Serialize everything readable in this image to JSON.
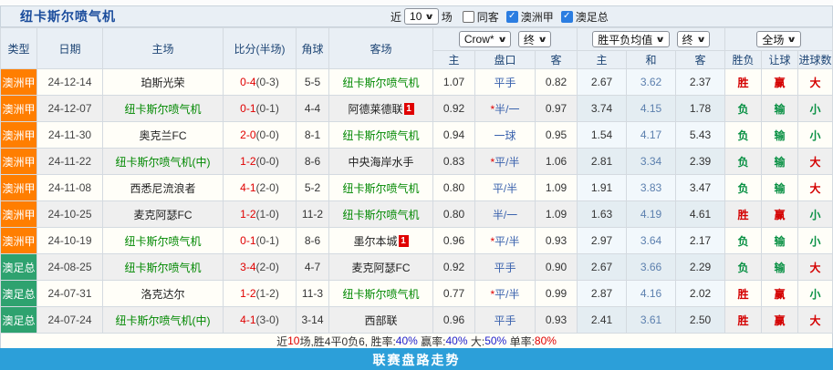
{
  "colors": {
    "title_navy": "#1A4C9C",
    "league_orange": "#FF7E00",
    "cup_green": "#2EA26F",
    "team_green": "#008800",
    "score_red": "#E00000",
    "pan_blue": "#3A62AD",
    "avg_blue": "#5B7FAE",
    "bar_blue": "#2C9FD9"
  },
  "icons": {
    "chevron_down": "∨",
    "check": "✓"
  },
  "header": {
    "team_title": "纽卡斯尔喷气机",
    "near_label": "近",
    "matches_count": "10",
    "matches_label": "场",
    "filters": [
      {
        "label": "同客",
        "checked": false
      },
      {
        "label": "澳洲甲",
        "checked": true
      },
      {
        "label": "澳足总",
        "checked": true
      }
    ]
  },
  "table": {
    "static_headers": [
      "类型",
      "日期",
      "主场",
      "比分(半场)",
      "角球",
      "客场"
    ],
    "selects": {
      "company": "Crow*",
      "company_time": "终",
      "avg": "胜平负均值",
      "avg_time": "终",
      "scope": "全场"
    },
    "sub_headers": [
      "主",
      "盘口",
      "客",
      "主",
      "和",
      "客",
      "胜负",
      "让球",
      "进球数"
    ],
    "rows": [
      {
        "type": "澳洲甲",
        "date": "24-12-14",
        "home": "珀斯光荣",
        "home_hl": false,
        "score_ft": "0-4",
        "score_ht": "(0-3)",
        "corner": "5-5",
        "away": "纽卡斯尔喷气机",
        "away_hl": true,
        "away_badge": "",
        "h": "1.07",
        "pan_star": "",
        "pan": "平手",
        "a": "0.82",
        "avg_h": "2.67",
        "avg_d": "3.62",
        "avg_a": "2.37",
        "r1": "胜",
        "r2": "赢",
        "r3": "大"
      },
      {
        "type": "澳洲甲",
        "date": "24-12-07",
        "home": "纽卡斯尔喷气机",
        "home_hl": true,
        "score_ft": "0-1",
        "score_ht": "(0-1)",
        "corner": "4-4",
        "away": "阿德莱德联",
        "away_hl": false,
        "away_badge": "1",
        "h": "0.92",
        "pan_star": "*",
        "pan": "半/一",
        "a": "0.97",
        "avg_h": "3.74",
        "avg_d": "4.15",
        "avg_a": "1.78",
        "r1": "负",
        "r2": "输",
        "r3": "小"
      },
      {
        "type": "澳洲甲",
        "date": "24-11-30",
        "home": "奥克兰FC",
        "home_hl": false,
        "score_ft": "2-0",
        "score_ht": "(0-0)",
        "corner": "8-1",
        "away": "纽卡斯尔喷气机",
        "away_hl": true,
        "away_badge": "",
        "h": "0.94",
        "pan_star": "",
        "pan": "一球",
        "a": "0.95",
        "avg_h": "1.54",
        "avg_d": "4.17",
        "avg_a": "5.43",
        "r1": "负",
        "r2": "输",
        "r3": "小"
      },
      {
        "type": "澳洲甲",
        "date": "24-11-22",
        "home": "纽卡斯尔喷气机(中)",
        "home_hl": true,
        "score_ft": "1-2",
        "score_ht": "(0-0)",
        "corner": "8-6",
        "away": "中央海岸水手",
        "away_hl": false,
        "away_badge": "",
        "h": "0.83",
        "pan_star": "*",
        "pan": "平/半",
        "a": "1.06",
        "avg_h": "2.81",
        "avg_d": "3.34",
        "avg_a": "2.39",
        "r1": "负",
        "r2": "输",
        "r3": "大"
      },
      {
        "type": "澳洲甲",
        "date": "24-11-08",
        "home": "西悉尼流浪者",
        "home_hl": false,
        "score_ft": "4-1",
        "score_ht": "(2-0)",
        "corner": "5-2",
        "away": "纽卡斯尔喷气机",
        "away_hl": true,
        "away_badge": "",
        "h": "0.80",
        "pan_star": "",
        "pan": "平/半",
        "a": "1.09",
        "avg_h": "1.91",
        "avg_d": "3.83",
        "avg_a": "3.47",
        "r1": "负",
        "r2": "输",
        "r3": "大"
      },
      {
        "type": "澳洲甲",
        "date": "24-10-25",
        "home": "麦克阿瑟FC",
        "home_hl": false,
        "score_ft": "1-2",
        "score_ht": "(1-0)",
        "corner": "11-2",
        "away": "纽卡斯尔喷气机",
        "away_hl": true,
        "away_badge": "",
        "h": "0.80",
        "pan_star": "",
        "pan": "半/一",
        "a": "1.09",
        "avg_h": "1.63",
        "avg_d": "4.19",
        "avg_a": "4.61",
        "r1": "胜",
        "r2": "赢",
        "r3": "小"
      },
      {
        "type": "澳洲甲",
        "date": "24-10-19",
        "home": "纽卡斯尔喷气机",
        "home_hl": true,
        "score_ft": "0-1",
        "score_ht": "(0-1)",
        "corner": "8-6",
        "away": "墨尔本城",
        "away_hl": false,
        "away_badge": "1",
        "h": "0.96",
        "pan_star": "*",
        "pan": "平/半",
        "a": "0.93",
        "avg_h": "2.97",
        "avg_d": "3.64",
        "avg_a": "2.17",
        "r1": "负",
        "r2": "输",
        "r3": "小"
      },
      {
        "type": "澳足总",
        "date": "24-08-25",
        "home": "纽卡斯尔喷气机",
        "home_hl": true,
        "score_ft": "3-4",
        "score_ht": "(2-0)",
        "corner": "4-7",
        "away": "麦克阿瑟FC",
        "away_hl": false,
        "away_badge": "",
        "h": "0.92",
        "pan_star": "",
        "pan": "平手",
        "a": "0.90",
        "avg_h": "2.67",
        "avg_d": "3.66",
        "avg_a": "2.29",
        "r1": "负",
        "r2": "输",
        "r3": "大"
      },
      {
        "type": "澳足总",
        "date": "24-07-31",
        "home": "洛克达尔",
        "home_hl": false,
        "score_ft": "1-2",
        "score_ht": "(1-2)",
        "corner": "11-3",
        "away": "纽卡斯尔喷气机",
        "away_hl": true,
        "away_badge": "",
        "h": "0.77",
        "pan_star": "*",
        "pan": "平/半",
        "a": "0.99",
        "avg_h": "2.87",
        "avg_d": "4.16",
        "avg_a": "2.02",
        "r1": "胜",
        "r2": "赢",
        "r3": "小"
      },
      {
        "type": "澳足总",
        "date": "24-07-24",
        "home": "纽卡斯尔喷气机(中)",
        "home_hl": true,
        "score_ft": "4-1",
        "score_ht": "(3-0)",
        "corner": "3-14",
        "away": "西部联",
        "away_hl": false,
        "away_badge": "",
        "h": "0.96",
        "pan_star": "",
        "pan": "平手",
        "a": "0.93",
        "avg_h": "2.41",
        "avg_d": "3.61",
        "avg_a": "2.50",
        "r1": "胜",
        "r2": "赢",
        "r3": "大"
      }
    ]
  },
  "summary": {
    "parts": [
      {
        "text": "近",
        "color": "black"
      },
      {
        "text": "10",
        "color": "red"
      },
      {
        "text": "场,胜4平0负6, 胜率:",
        "color": "black"
      },
      {
        "text": "40%",
        "color": "blue"
      },
      {
        "text": " 赢率:",
        "color": "black"
      },
      {
        "text": "40%",
        "color": "blue"
      },
      {
        "text": " 大:",
        "color": "black"
      },
      {
        "text": "50%",
        "color": "blue"
      },
      {
        "text": " 单率:",
        "color": "black"
      },
      {
        "text": "80%",
        "color": "red"
      }
    ]
  },
  "footer": {
    "label": "联赛盘路走势"
  }
}
